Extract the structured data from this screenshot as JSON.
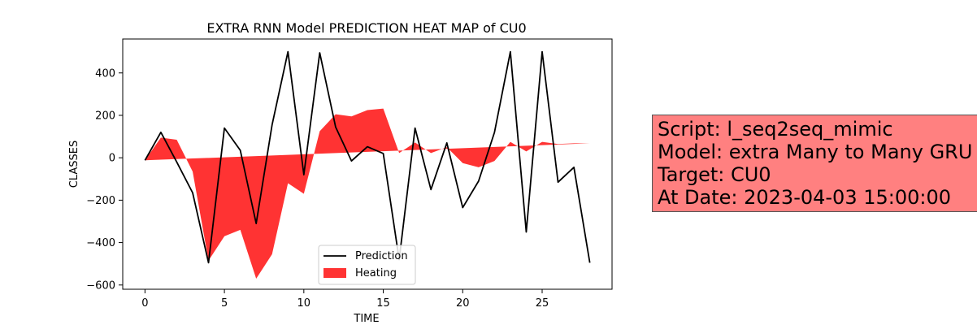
{
  "chart_data": {
    "type": "line",
    "title": "EXTRA RNN Model PREDICTION HEAT MAP of CU0",
    "xlabel": "TIME",
    "ylabel": "CLASSES",
    "xlim": [
      -1.4,
      29.4
    ],
    "ylim": [
      -620,
      560
    ],
    "xticks": [
      0,
      5,
      10,
      15,
      20,
      25
    ],
    "yticks": [
      -600,
      -400,
      -200,
      0,
      200,
      400
    ],
    "grid": false,
    "legend_position": "lower-center",
    "series": [
      {
        "name": "Prediction",
        "kind": "line",
        "color": "#000000",
        "x": [
          0,
          1,
          2,
          3,
          4,
          5,
          6,
          7,
          8,
          9,
          10,
          11,
          12,
          13,
          14,
          15,
          16,
          17,
          18,
          19,
          20,
          21,
          22,
          23,
          24,
          25,
          26,
          27,
          28
        ],
        "values": [
          -12,
          120,
          -20,
          -165,
          -495,
          140,
          35,
          -310,
          155,
          500,
          -80,
          495,
          145,
          -15,
          52,
          20,
          -480,
          140,
          -150,
          70,
          -235,
          -110,
          120,
          500,
          -350,
          500,
          -115,
          -45,
          -495
        ]
      },
      {
        "name": "Heating",
        "kind": "fill_between",
        "color": "#ff0000",
        "x": [
          0,
          1,
          2,
          3,
          4,
          5,
          6,
          7,
          8,
          9,
          10,
          11,
          12,
          13,
          14,
          15,
          16,
          17,
          18,
          19,
          20,
          21,
          22,
          23,
          24,
          25,
          26,
          27,
          28
        ],
        "upper": [
          -12,
          95,
          85,
          -65,
          -485,
          -370,
          -340,
          -570,
          -455,
          -120,
          -170,
          125,
          205,
          195,
          225,
          232,
          22,
          72,
          22,
          50,
          -25,
          -45,
          -15,
          75,
          30,
          75,
          65,
          68,
          68
        ],
        "baseline": [
          -12,
          -9.14,
          -6.29,
          -3.43,
          -0.57,
          2.29,
          5.14,
          8,
          10.86,
          13.71,
          16.57,
          19.43,
          22.29,
          25.14,
          28,
          30.86,
          33.71,
          36.57,
          39.43,
          42.29,
          45.14,
          48,
          50.86,
          53.71,
          56.57,
          59.43,
          62.29,
          65.14,
          68
        ]
      }
    ]
  },
  "info_box": {
    "lines": [
      "Script: l_seq2seq_mimic",
      "Model: extra Many to Many GRU",
      "Target: CU0",
      "At Date: 2023-04-03 15:00:00"
    ],
    "background": "#ff8080"
  }
}
